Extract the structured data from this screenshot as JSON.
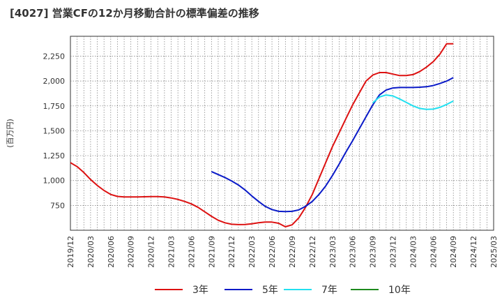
{
  "title": "[4027]  営業CFの12か月移動合計の標準偏差の推移",
  "chart_data": {
    "type": "line",
    "title": "[4027]  営業CFの12か月移動合計の標準偏差の推移",
    "ylabel": "(百万円)",
    "xlabel": "",
    "ylim": [
      500,
      2450
    ],
    "y_ticks": [
      750,
      1000,
      1250,
      1500,
      1750,
      2000,
      2250
    ],
    "y_tick_labels": [
      "750",
      "1,000",
      "1,250",
      "1,500",
      "1,750",
      "2,000",
      "2,250"
    ],
    "x_ticks": [
      "2019/12",
      "2020/03",
      "2020/06",
      "2020/09",
      "2020/12",
      "2021/03",
      "2021/06",
      "2021/09",
      "2021/12",
      "2022/03",
      "2022/06",
      "2022/09",
      "2022/12",
      "2023/03",
      "2023/06",
      "2023/09",
      "2023/12",
      "2024/03",
      "2024/06",
      "2024/09",
      "2024/12",
      "2025/03"
    ],
    "grid": true,
    "legend_position": "bottom",
    "series": [
      {
        "name": "3年",
        "color": "#dd1111",
        "x": [
          "2019/12",
          "2020/01",
          "2020/02",
          "2020/03",
          "2020/04",
          "2020/05",
          "2020/06",
          "2020/07",
          "2020/08",
          "2020/09",
          "2020/10",
          "2020/11",
          "2020/12",
          "2021/01",
          "2021/02",
          "2021/03",
          "2021/04",
          "2021/05",
          "2021/06",
          "2021/07",
          "2021/08",
          "2021/09",
          "2021/10",
          "2021/11",
          "2021/12",
          "2022/01",
          "2022/02",
          "2022/03",
          "2022/04",
          "2022/05",
          "2022/06",
          "2022/07",
          "2022/08",
          "2022/09",
          "2022/10",
          "2022/11",
          "2022/12",
          "2023/01",
          "2023/02",
          "2023/03",
          "2023/04",
          "2023/05",
          "2023/06",
          "2023/07",
          "2023/08",
          "2023/09",
          "2023/10",
          "2023/11",
          "2023/12",
          "2024/01",
          "2024/02",
          "2024/03",
          "2024/04",
          "2024/05",
          "2024/06",
          "2024/07",
          "2024/08",
          "2024/09"
        ],
        "values": [
          1180,
          1140,
          1080,
          1010,
          950,
          900,
          860,
          840,
          835,
          835,
          835,
          837,
          838,
          838,
          835,
          825,
          810,
          790,
          765,
          730,
          685,
          640,
          600,
          575,
          560,
          557,
          558,
          565,
          575,
          583,
          582,
          570,
          535,
          555,
          625,
          730,
          860,
          1020,
          1180,
          1340,
          1480,
          1620,
          1760,
          1880,
          2000,
          2060,
          2085,
          2085,
          2070,
          2055,
          2055,
          2065,
          2095,
          2140,
          2195,
          2270,
          2375,
          2375
        ]
      },
      {
        "name": "5年",
        "color": "#0a1ac8",
        "x": [
          "2021/09",
          "2021/10",
          "2021/11",
          "2021/12",
          "2022/01",
          "2022/02",
          "2022/03",
          "2022/04",
          "2022/05",
          "2022/06",
          "2022/07",
          "2022/08",
          "2022/09",
          "2022/10",
          "2022/11",
          "2022/12",
          "2023/01",
          "2023/02",
          "2023/03",
          "2023/04",
          "2023/05",
          "2023/06",
          "2023/07",
          "2023/08",
          "2023/09",
          "2023/10",
          "2023/11",
          "2023/12",
          "2024/01",
          "2024/02",
          "2024/03",
          "2024/04",
          "2024/05",
          "2024/06",
          "2024/07",
          "2024/08",
          "2024/09"
        ],
        "values": [
          1090,
          1060,
          1030,
          995,
          955,
          905,
          845,
          790,
          740,
          708,
          690,
          688,
          690,
          705,
          740,
          790,
          860,
          945,
          1050,
          1165,
          1285,
          1400,
          1520,
          1640,
          1760,
          1860,
          1910,
          1930,
          1935,
          1935,
          1935,
          1938,
          1943,
          1955,
          1975,
          2000,
          2035
        ]
      },
      {
        "name": "7年",
        "color": "#22e0f0",
        "x": [
          "2023/09",
          "2023/10",
          "2023/11",
          "2023/12",
          "2024/01",
          "2024/02",
          "2024/03",
          "2024/04",
          "2024/05",
          "2024/06",
          "2024/07",
          "2024/08",
          "2024/09"
        ],
        "values": [
          1780,
          1840,
          1860,
          1850,
          1820,
          1785,
          1750,
          1725,
          1715,
          1718,
          1735,
          1765,
          1800
        ]
      },
      {
        "name": "10年",
        "color": "#1e8a1e",
        "x": [],
        "values": []
      }
    ]
  }
}
